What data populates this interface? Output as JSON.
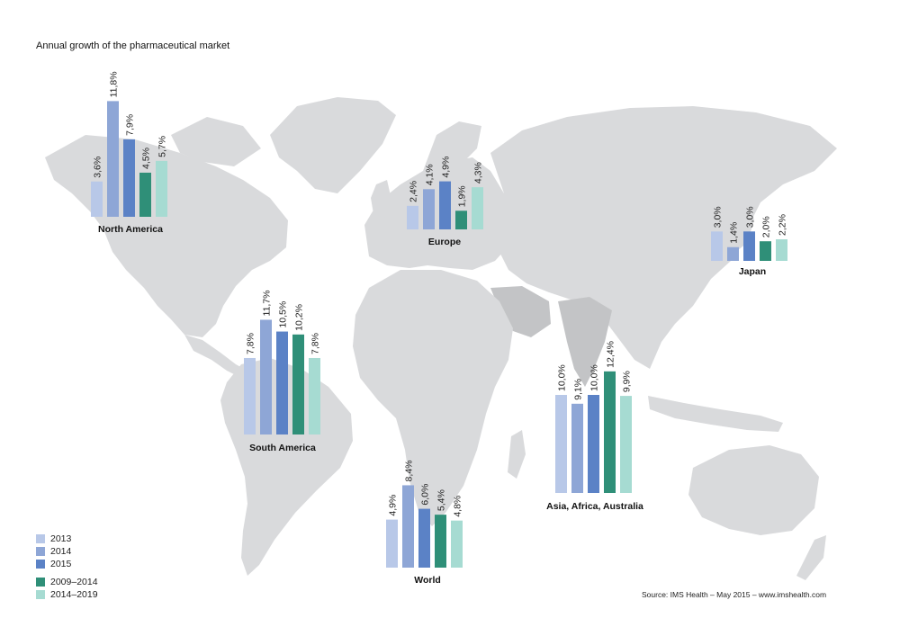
{
  "title": "Annual growth of the pharmaceutical market",
  "source": "Source: IMS Health – May 2015 – www.imshealth.com",
  "colors": {
    "2013": "#b8c8e8",
    "2014": "#8ea6d6",
    "2015": "#5b82c6",
    "2009–2014": "#2f8f78",
    "2014–2019": "#a6dbd2",
    "land": "#d9dadc",
    "land_dark": "#c3c4c6"
  },
  "legend": [
    "2013",
    "2014",
    "2015",
    "2009–2014",
    "2014–2019"
  ],
  "chart_data": [
    {
      "type": "bar",
      "region": "North America",
      "categories": [
        "2013",
        "2014",
        "2015",
        "2009–2014",
        "2014–2019"
      ],
      "values": [
        3.6,
        11.8,
        7.9,
        4.5,
        5.7
      ],
      "labels": [
        "3,6%",
        "11,8%",
        "7,9%",
        "4,5%",
        "5,7%"
      ]
    },
    {
      "type": "bar",
      "region": "Europe",
      "categories": [
        "2013",
        "2014",
        "2015",
        "2009–2014",
        "2014–2019"
      ],
      "values": [
        2.4,
        4.1,
        4.9,
        1.9,
        4.3
      ],
      "labels": [
        "2,4%",
        "4,1%",
        "4,9%",
        "1,9%",
        "4,3%"
      ]
    },
    {
      "type": "bar",
      "region": "Japan",
      "categories": [
        "2013",
        "2014",
        "2015",
        "2009–2014",
        "2014–2019"
      ],
      "values": [
        3.0,
        1.4,
        3.0,
        2.0,
        2.2
      ],
      "labels": [
        "3,0%",
        "1,4%",
        "3,0%",
        "2,0%",
        "2,2%"
      ]
    },
    {
      "type": "bar",
      "region": "South America",
      "categories": [
        "2013",
        "2014",
        "2015",
        "2009–2014",
        "2014–2019"
      ],
      "values": [
        7.8,
        11.7,
        10.5,
        10.2,
        7.8
      ],
      "labels": [
        "7,8%",
        "11,7%",
        "10,5%",
        "10,2%",
        "7,8%"
      ]
    },
    {
      "type": "bar",
      "region": "Asia, Africa, Australia",
      "categories": [
        "2013",
        "2014",
        "2015",
        "2009–2014",
        "2014–2019"
      ],
      "values": [
        10.0,
        9.1,
        10.0,
        12.4,
        9.9
      ],
      "labels": [
        "10,0%",
        "9,1%",
        "10,0%",
        "12,4%",
        "9,9%"
      ]
    },
    {
      "type": "bar",
      "region": "World",
      "categories": [
        "2013",
        "2014",
        "2015",
        "2009–2014",
        "2014–2019"
      ],
      "values": [
        4.9,
        8.4,
        6.0,
        5.4,
        4.8
      ],
      "labels": [
        "4,9%",
        "8,4%",
        "6,0%",
        "5,4%",
        "4,8%"
      ]
    }
  ]
}
